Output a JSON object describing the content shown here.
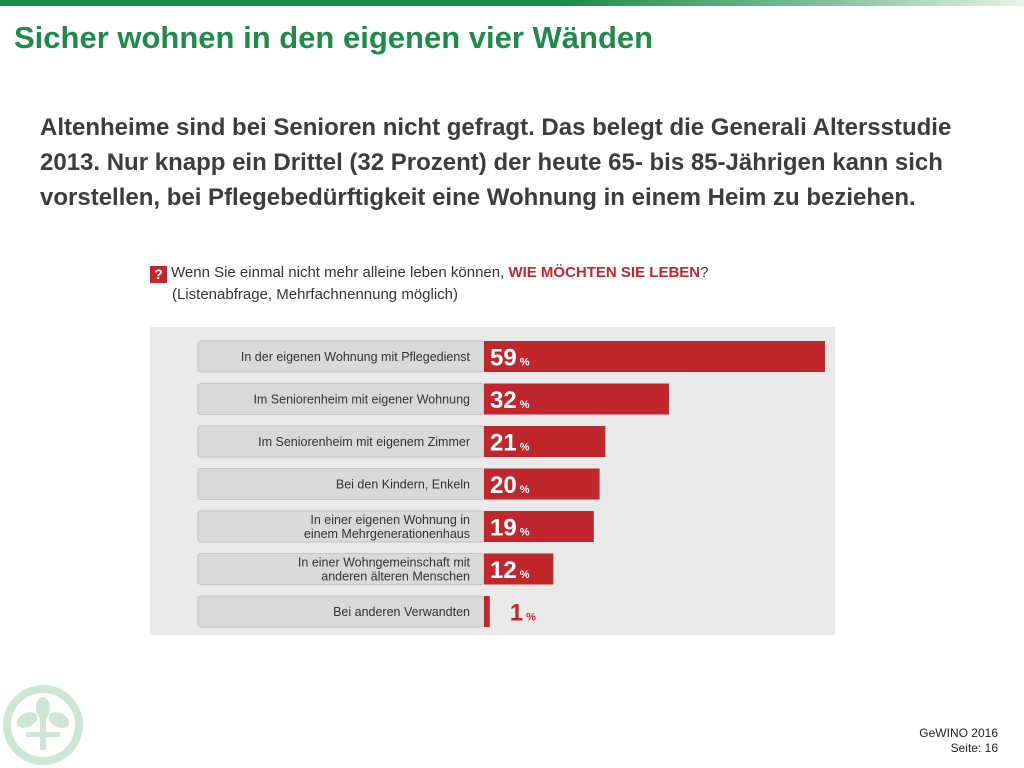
{
  "slide": {
    "title": "Sicher wohnen in den eigenen vier Wänden",
    "body": "Altenheime sind bei Senioren nicht gefragt. Das belegt die Generali Altersstudie 2013. Nur knapp ein Drittel (32 Prozent) der heute 65- bis 85-Jährigen kann sich vorstellen, bei Pflegebedürftigkeit eine Wohnung in einem Heim zu beziehen.",
    "footer_line1": "GeWINO 2016",
    "footer_line2": "Seite: 16"
  },
  "question": {
    "icon_label": "?",
    "text_main": "Wenn Sie einmal nicht mehr alleine leben können, ",
    "text_emph": "WIE MÖCHTEN SIE LEBEN",
    "text_end": "?",
    "subtitle": "(Listenabfrage, Mehrfachnennung möglich)"
  },
  "colors": {
    "brand_green": "#1f8a4c",
    "bar_red": "#c0272d",
    "label_box": "#d9d9d9",
    "panel_bg": "#e9e9e9"
  },
  "chart_data": {
    "type": "bar",
    "orientation": "horizontal",
    "categories": [
      [
        "In der eigenen Wohnung mit Pflegedienst"
      ],
      [
        "Im Seniorenheim mit eigener Wohnung"
      ],
      [
        "Im Seniorenheim mit eigenem Zimmer"
      ],
      [
        "Bei den Kindern, Enkeln"
      ],
      [
        "In einer eigenen Wohnung in",
        "einem Mehrgenerationenhaus"
      ],
      [
        "In einer Wohngemeinschaft mit",
        "anderen älteren Menschen"
      ],
      [
        "Bei anderen Verwandten"
      ]
    ],
    "values": [
      59,
      32,
      21,
      20,
      19,
      12,
      1
    ],
    "value_unit": "%",
    "xlim": [
      0,
      59
    ],
    "grid": false
  }
}
